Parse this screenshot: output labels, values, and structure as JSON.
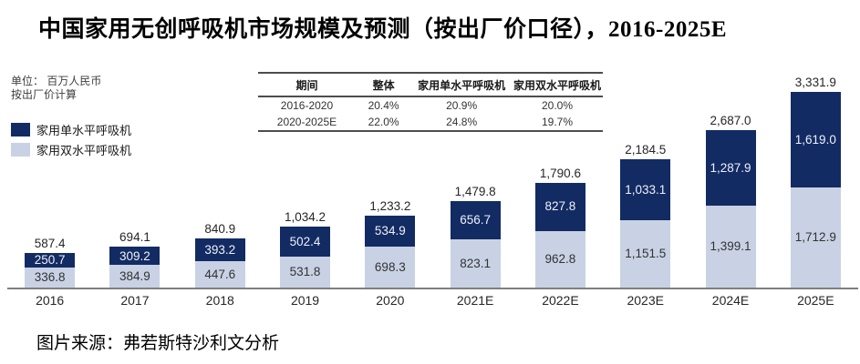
{
  "title": "中国家用无创呼吸机市场规模及预测（按出厂价口径），2016-2025E",
  "unit_note": {
    "line1": "单位： 百万人民币",
    "line2": "按出厂价计算"
  },
  "legend": {
    "items": [
      {
        "label": "家用单水平呼吸机",
        "color": "#132B63"
      },
      {
        "label": "家用双水平呼吸机",
        "color": "#C8D2E4"
      }
    ]
  },
  "cagr_table": {
    "headers": [
      "期间",
      "整体",
      "家用单水平呼吸机",
      "家用双水平呼吸机"
    ],
    "rows": [
      [
        "2016-2020",
        "20.4%",
        "20.9%",
        "20.0%"
      ],
      [
        "2020-2025E",
        "22.0%",
        "24.8%",
        "19.7%"
      ]
    ]
  },
  "chart_data": {
    "type": "bar",
    "stacked": true,
    "title": "中国家用无创呼吸机市场规模及预测（按出厂价口径），2016-2025E",
    "xlabel": "",
    "ylabel": "百万人民币",
    "ylim": [
      0,
      3500
    ],
    "grid": false,
    "legend_position": "upper-left",
    "categories": [
      "2016",
      "2017",
      "2018",
      "2019",
      "2020",
      "2021E",
      "2022E",
      "2023E",
      "2024E",
      "2025E"
    ],
    "series": [
      {
        "name": "家用单水平呼吸机",
        "stack_position": "top",
        "color": "#132B63",
        "label_color": "#eef1f8",
        "values": [
          250.7,
          309.2,
          393.2,
          502.4,
          534.9,
          656.7,
          827.8,
          1033.1,
          1287.9,
          1619.0
        ],
        "labels": [
          "250.7",
          "309.2",
          "393.2",
          "502.4",
          "534.9",
          "656.7",
          "827.8",
          "1,033.1",
          "1,287.9",
          "1,619.0"
        ]
      },
      {
        "name": "家用双水平呼吸机",
        "stack_position": "bottom",
        "color": "#C8D2E4",
        "label_color": "#333333",
        "values": [
          336.8,
          384.9,
          447.6,
          531.8,
          698.3,
          823.1,
          962.8,
          1151.5,
          1399.1,
          1712.9
        ],
        "labels": [
          "336.8",
          "384.9",
          "447.6",
          "531.8",
          "698.3",
          "823.1",
          "962.8",
          "1,151.5",
          "1,399.1",
          "1,712.9"
        ]
      }
    ],
    "totals": [
      587.4,
      694.1,
      840.9,
      1034.2,
      1233.2,
      1479.8,
      1790.6,
      2184.5,
      2687.0,
      3331.9
    ],
    "total_labels": [
      "587.4",
      "694.1",
      "840.9",
      "1,034.2",
      "1,233.2",
      "1,479.8",
      "1,790.6",
      "2,184.5",
      "2,687.0",
      "3,331.9"
    ]
  },
  "source": "图片来源：弗若斯特沙利文分析"
}
